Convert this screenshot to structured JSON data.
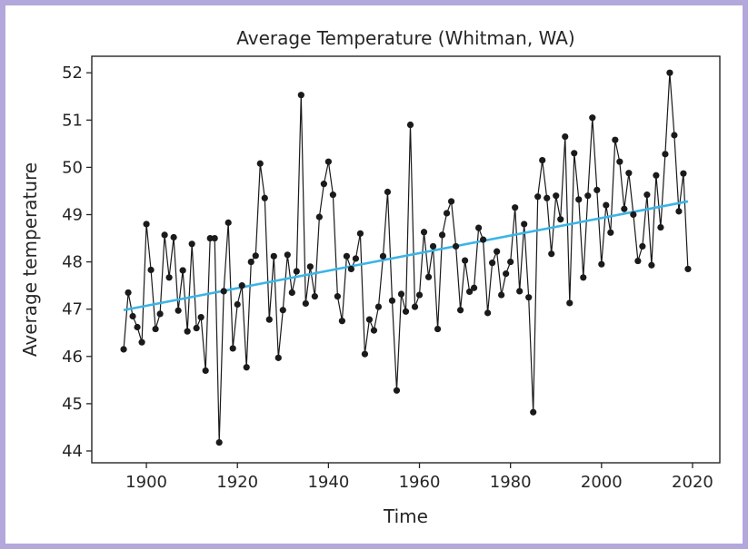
{
  "chart_data": {
    "type": "line",
    "title": "Average Temperature (Whitman, WA)",
    "xlabel": "Time",
    "ylabel": "Average temperature",
    "xlim": [
      1888,
      2026
    ],
    "ylim": [
      43.75,
      52.35
    ],
    "xticks": [
      1900,
      1920,
      1940,
      1960,
      1980,
      2000,
      2020
    ],
    "yticks": [
      44,
      45,
      46,
      47,
      48,
      49,
      50,
      51,
      52
    ],
    "grid": false,
    "colors": {
      "series": "#1a1a1a",
      "trend": "#3cb4e6",
      "axis": "#262626"
    },
    "series": [
      {
        "x": [
          1895,
          1896,
          1897,
          1898,
          1899,
          1900,
          1901,
          1902,
          1903,
          1904,
          1905,
          1906,
          1907,
          1908,
          1909,
          1910,
          1911,
          1912,
          1913,
          1914,
          1915,
          1916,
          1917,
          1918,
          1919,
          1920,
          1921,
          1922,
          1923,
          1924,
          1925,
          1926,
          1927,
          1928,
          1929,
          1930,
          1931,
          1932,
          1933,
          1934,
          1935,
          1936,
          1937,
          1938,
          1939,
          1940,
          1941,
          1942,
          1943,
          1944,
          1945,
          1946,
          1947,
          1948,
          1949,
          1950,
          1951,
          1952,
          1953,
          1954,
          1955,
          1956,
          1957,
          1958,
          1959,
          1960,
          1961,
          1962,
          1963,
          1964,
          1965,
          1966,
          1967,
          1968,
          1969,
          1970,
          1971,
          1972,
          1973,
          1974,
          1975,
          1976,
          1977,
          1978,
          1979,
          1980,
          1981,
          1982,
          1983,
          1984,
          1985,
          1986,
          1987,
          1988,
          1989,
          1990,
          1991,
          1992,
          1993,
          1994,
          1995,
          1996,
          1997,
          1998,
          1999,
          2000,
          2001,
          2002,
          2003,
          2004,
          2005,
          2006,
          2007,
          2008,
          2009,
          2010,
          2011,
          2012,
          2013,
          2014,
          2015,
          2016,
          2017,
          2018,
          2019
        ],
        "values": [
          46.15,
          47.35,
          46.85,
          46.62,
          46.3,
          48.8,
          47.83,
          46.58,
          46.9,
          48.57,
          47.67,
          48.52,
          46.97,
          47.82,
          46.53,
          48.38,
          46.6,
          46.83,
          45.7,
          48.5,
          48.5,
          44.18,
          47.38,
          48.83,
          46.17,
          47.1,
          47.5,
          45.77,
          48.0,
          48.13,
          50.08,
          49.35,
          46.78,
          48.12,
          45.97,
          46.98,
          48.15,
          47.35,
          47.8,
          51.53,
          47.12,
          47.9,
          47.27,
          48.95,
          49.65,
          50.12,
          49.42,
          47.27,
          46.75,
          48.12,
          47.85,
          48.07,
          48.6,
          46.05,
          46.78,
          46.55,
          47.05,
          48.12,
          49.48,
          47.18,
          45.28,
          47.32,
          46.95,
          50.9,
          47.05,
          47.3,
          48.63,
          47.68,
          48.33,
          46.58,
          48.57,
          49.03,
          49.28,
          48.33,
          46.98,
          48.03,
          47.37,
          47.45,
          48.72,
          48.47,
          46.92,
          47.98,
          48.22,
          47.3,
          47.75,
          48.0,
          49.15,
          47.38,
          48.8,
          47.25,
          44.82,
          49.38,
          50.15,
          49.35,
          48.17,
          49.4,
          48.9,
          50.65,
          47.13,
          50.3,
          49.32,
          47.67,
          49.4,
          51.05,
          49.52,
          47.95,
          49.2,
          48.62,
          50.58,
          50.12,
          49.12,
          49.88,
          49.0,
          48.02,
          48.33,
          49.42,
          47.93,
          49.83,
          48.73,
          50.28,
          52.0,
          50.68,
          49.07,
          49.87,
          47.85
        ]
      },
      {
        "x": [
          1895,
          2019
        ],
        "values": [
          46.98,
          49.28
        ]
      }
    ]
  }
}
